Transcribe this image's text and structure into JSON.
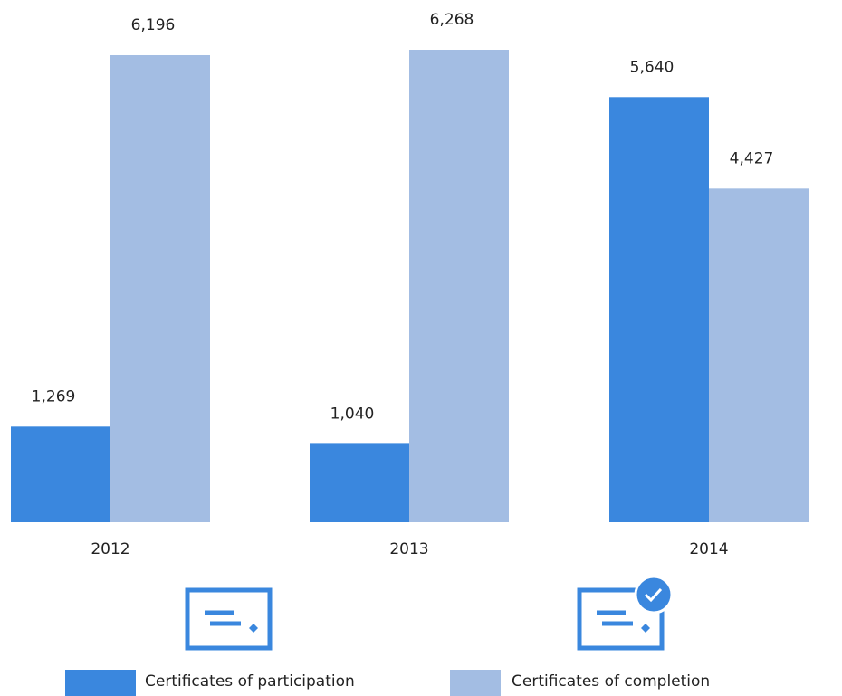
{
  "chart_data": {
    "type": "bar",
    "categories": [
      "2012",
      "2013",
      "2014"
    ],
    "series": [
      {
        "name": "Certificates of participation",
        "color": "#3a87de",
        "values": [
          1269,
          1040,
          5640
        ],
        "value_labels": [
          "1,269",
          "1,040",
          "5,640"
        ]
      },
      {
        "name": "Certificates of completion",
        "color": "#a3bde3",
        "values": [
          6196,
          6268,
          4427
        ],
        "value_labels": [
          "6,196",
          "6,268",
          "4,427"
        ]
      }
    ],
    "legend": "bottom"
  }
}
